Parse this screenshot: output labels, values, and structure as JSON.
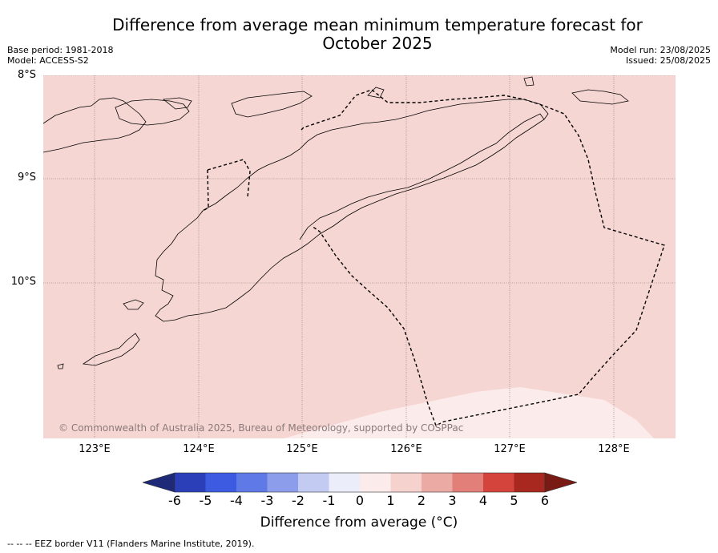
{
  "title_line1": "Difference from average mean minimum temperature forecast for",
  "title_line2": "October 2025",
  "base_period": "Base period: 1981-2018",
  "model": "Model: ACCESS-S2",
  "model_run": "Model run: 23/08/2025",
  "issued": "Issued: 25/08/2025",
  "lat_labels": [
    "8°S",
    "9°S",
    "10°S"
  ],
  "lon_labels": [
    "123°E",
    "124°E",
    "125°E",
    "126°E",
    "127°E",
    "128°E"
  ],
  "copyright": "© Commonwealth of Australia 2025, Bureau of Meteorology, supported by COSPPac",
  "colorbar": {
    "ticks": [
      "-6",
      "-5",
      "-4",
      "-3",
      "-2",
      "-1",
      "0",
      "1",
      "2",
      "3",
      "4",
      "5",
      "6"
    ],
    "colors": [
      "#1e2a78",
      "#2b40b8",
      "#3c5be0",
      "#5f79e6",
      "#8c9eeb",
      "#c3cbf3",
      "#ebeefa",
      "#fbeceb",
      "#f6d2cf",
      "#ecaaa5",
      "#e27f78",
      "#d5443c",
      "#a8271f",
      "#7a1a14"
    ],
    "label": "Difference from average (°C)"
  },
  "legend_note": "-- -- -- EEZ border V11 (Flanders Marine Institute, 2019).",
  "colors": {
    "map_fill_1_2": "#f6d6d3",
    "map_fill_0_1": "#fbeceb"
  }
}
